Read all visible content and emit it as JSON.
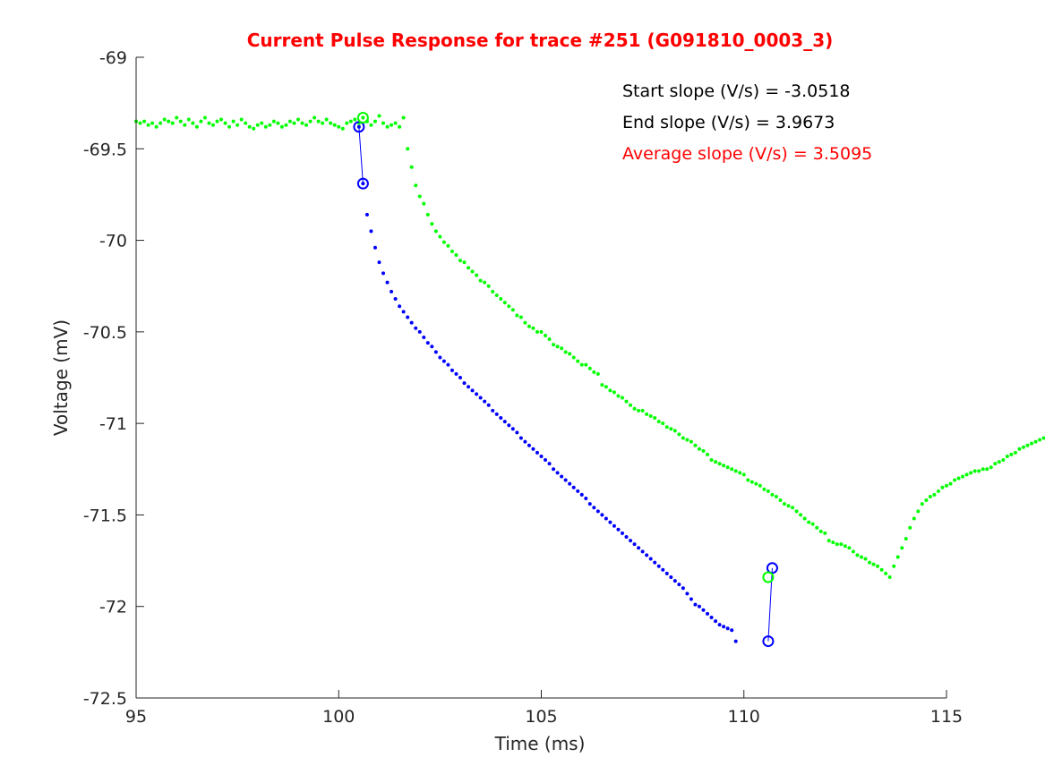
{
  "chart_data": {
    "type": "scatter",
    "title": "Current Pulse Response for trace #251 (G091810_0003_3)",
    "xlabel": "Time (ms)",
    "ylabel": "Voltage (mV)",
    "xlim": [
      95,
      115
    ],
    "ylim": [
      -72.5,
      -69
    ],
    "xticks": [
      "95",
      "100",
      "105",
      "110",
      "115"
    ],
    "xtick_values": [
      95,
      100,
      105,
      110,
      115
    ],
    "yticks": [
      "-69",
      "-69.5",
      "-70",
      "-70.5",
      "-71",
      "-71.5",
      "-72",
      "-72.5"
    ],
    "ytick_values": [
      -69,
      -69.5,
      -70,
      -70.5,
      -71,
      -71.5,
      -72,
      -72.5
    ],
    "grid": false,
    "annotations": [
      {
        "text": "Start slope (V/s) = -3.0518",
        "color": "#000000"
      },
      {
        "text": "End slope (V/s) = 3.9673",
        "color": "#000000"
      },
      {
        "text": "Average slope (V/s) = 3.5095",
        "color": "#ff0000"
      }
    ],
    "series": [
      {
        "color": "#00ff00",
        "marker": "dot",
        "x_start": 95,
        "x_step": 0.1,
        "values": [
          -69.35,
          -69.36,
          -69.35,
          -69.37,
          -69.36,
          -69.38,
          -69.36,
          -69.34,
          -69.35,
          -69.36,
          -69.33,
          -69.35,
          -69.37,
          -69.34,
          -69.36,
          -69.38,
          -69.35,
          -69.33,
          -69.36,
          -69.37,
          -69.35,
          -69.34,
          -69.36,
          -69.38,
          -69.35,
          -69.37,
          -69.34,
          -69.36,
          -69.38,
          -69.39,
          -69.37,
          -69.36,
          -69.38,
          -69.37,
          -69.35,
          -69.36,
          -69.38,
          -69.37,
          -69.35,
          -69.36,
          -69.34,
          -69.36,
          -69.37,
          -69.35,
          -69.33,
          -69.35,
          -69.36,
          -69.34,
          -69.36,
          -69.37,
          -69.38,
          -69.39,
          -69.36,
          -69.35,
          -69.34,
          -69.36,
          -69.33,
          -69.35,
          -69.37,
          -69.35,
          -69.32,
          -69.36,
          -69.38,
          -69.37,
          -69.36,
          -69.38,
          -69.33,
          -69.5,
          -69.6,
          -69.7,
          -69.76,
          -69.8,
          -69.86,
          -69.91,
          -69.95,
          -69.98,
          -70.01,
          -70.03,
          -70.06,
          -70.08,
          -70.11,
          -70.12,
          -70.15,
          -70.17,
          -70.19,
          -70.22,
          -70.23,
          -70.25,
          -70.28,
          -70.3,
          -70.32,
          -70.34,
          -70.36,
          -70.38,
          -70.41,
          -70.42,
          -70.45,
          -70.47,
          -70.48,
          -70.5,
          -70.5,
          -70.52,
          -70.54,
          -70.57,
          -70.58,
          -70.59,
          -70.61,
          -70.62,
          -70.64,
          -70.66,
          -70.68,
          -70.68,
          -70.7,
          -70.72,
          -70.73,
          -70.79,
          -70.8,
          -70.82,
          -70.83,
          -70.85,
          -70.86,
          -70.88,
          -70.9,
          -70.92,
          -70.93,
          -70.93,
          -70.95,
          -70.96,
          -70.97,
          -70.99,
          -71.0,
          -71.02,
          -71.03,
          -71.04,
          -71.06,
          -71.08,
          -71.09,
          -71.1,
          -71.12,
          -71.14,
          -71.15,
          -71.17,
          -71.2,
          -71.21,
          -71.22,
          -71.23,
          -71.24,
          -71.25,
          -71.26,
          -71.27,
          -71.28,
          -71.31,
          -71.32,
          -71.33,
          -71.34,
          -71.36,
          -71.37,
          -71.39,
          -71.4,
          -71.42,
          -71.44,
          -71.45,
          -71.46,
          -71.48,
          -71.5,
          -71.52,
          -71.54,
          -71.55,
          -71.57,
          -71.59,
          -71.6,
          -71.64,
          -71.65,
          -71.66,
          -71.66,
          -71.67,
          -71.68,
          -71.7,
          -71.72,
          -71.73,
          -71.74,
          -71.76,
          -71.77,
          -71.78,
          -71.8,
          -71.82,
          -71.84,
          -71.78,
          -71.73,
          -71.68,
          -71.63,
          -71.57,
          -71.52,
          -71.48,
          -71.44,
          -71.42,
          -71.4,
          -71.39,
          -71.37,
          -71.35,
          -71.34,
          -71.33,
          -71.31,
          -71.3,
          -71.29,
          -71.28,
          -71.27,
          -71.26,
          -71.26,
          -71.25,
          -71.25,
          -71.24,
          -71.22,
          -71.21,
          -71.2,
          -71.18,
          -71.17,
          -71.16,
          -71.14,
          -71.13,
          -71.12,
          -71.11,
          -71.1,
          -71.09,
          -71.08,
          -71.07,
          -71.06,
          -71.05,
          -71.05,
          -71.04,
          -71.03,
          -71.02,
          -71.02,
          -71.03,
          -71.04,
          -71.04,
          -71.03,
          -71.02,
          -71.01
        ]
      },
      {
        "color": "#0000ff",
        "marker": "dot",
        "x_start": 100.5,
        "x_step": 0.1,
        "values": [
          -69.38,
          -69.69,
          -69.86,
          -69.95,
          -70.04,
          -70.12,
          -70.18,
          -70.23,
          -70.28,
          -70.32,
          -70.36,
          -70.39,
          -70.42,
          -70.45,
          -70.48,
          -70.5,
          -70.53,
          -70.56,
          -70.58,
          -70.61,
          -70.64,
          -70.66,
          -70.68,
          -70.71,
          -70.73,
          -70.75,
          -70.78,
          -70.8,
          -70.82,
          -70.84,
          -70.86,
          -70.88,
          -70.9,
          -70.93,
          -70.95,
          -70.97,
          -70.99,
          -71.01,
          -71.03,
          -71.05,
          -71.08,
          -71.1,
          -71.12,
          -71.14,
          -71.16,
          -71.18,
          -71.2,
          -71.22,
          -71.25,
          -71.27,
          -71.29,
          -71.31,
          -71.33,
          -71.35,
          -71.37,
          -71.39,
          -71.41,
          -71.44,
          -71.46,
          -71.48,
          -71.5,
          -71.52,
          -71.54,
          -71.56,
          -71.58,
          -71.6,
          -71.62,
          -71.64,
          -71.66,
          -71.68,
          -71.7,
          -71.72,
          -71.74,
          -71.76,
          -71.78,
          -71.8,
          -71.82,
          -71.84,
          -71.86,
          -71.88,
          -71.9,
          -71.93,
          -71.96,
          -71.99,
          -72.0,
          -72.02,
          -72.04,
          -72.06,
          -72.08,
          -72.1,
          -72.11,
          -72.12,
          -72.13,
          -72.19
        ]
      }
    ],
    "circled_points": [
      {
        "x": 100.5,
        "y": -69.38,
        "color": "#0000ff"
      },
      {
        "x": 100.6,
        "y": -69.69,
        "color": "#0000ff"
      },
      {
        "x": 100.6,
        "y": -69.33,
        "color": "#00ff00"
      },
      {
        "x": 110.6,
        "y": -72.19,
        "color": "#0000ff"
      },
      {
        "x": 110.7,
        "y": -71.79,
        "color": "#0000ff"
      },
      {
        "x": 110.6,
        "y": -71.84,
        "color": "#00ff00"
      }
    ],
    "lines": [
      {
        "color": "#0000ff",
        "points": [
          [
            100.5,
            -69.38
          ],
          [
            100.6,
            -69.69
          ]
        ]
      },
      {
        "color": "#0000ff",
        "points": [
          [
            110.6,
            -72.19
          ],
          [
            110.7,
            -71.79
          ]
        ]
      }
    ]
  }
}
